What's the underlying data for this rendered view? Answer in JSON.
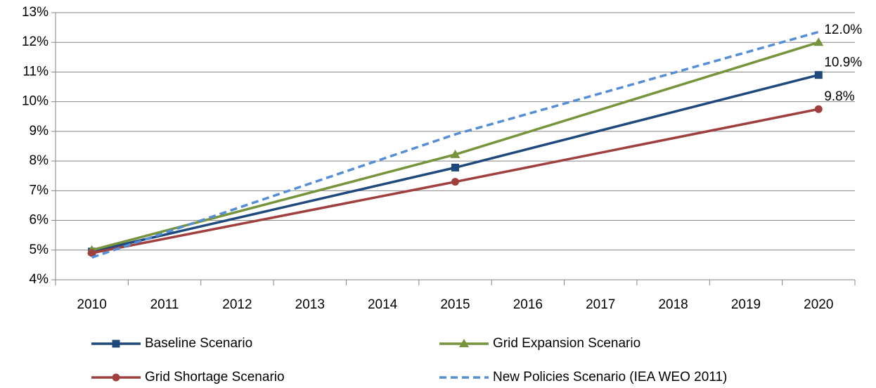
{
  "chart_data": {
    "type": "line",
    "xlim": [
      2009.5,
      2020.5
    ],
    "xticks": [
      2010,
      2011,
      2012,
      2013,
      2014,
      2015,
      2016,
      2017,
      2018,
      2019,
      2020
    ],
    "ylim": [
      4,
      13
    ],
    "yticks": [
      {
        "value": 4,
        "label": "4%"
      },
      {
        "value": 5,
        "label": "5%"
      },
      {
        "value": 6,
        "label": "6%"
      },
      {
        "value": 7,
        "label": "7%"
      },
      {
        "value": 8,
        "label": "8%"
      },
      {
        "value": 9,
        "label": "9%"
      },
      {
        "value": 10,
        "label": "10%"
      },
      {
        "value": 11,
        "label": "11%"
      },
      {
        "value": 12,
        "label": "12%"
      },
      {
        "value": 13,
        "label": "13%"
      }
    ],
    "grid": true,
    "legend": "bottom",
    "series": [
      {
        "name": "Baseline Scenario",
        "color": "#1f497d",
        "marker": "square",
        "x": [
          2010,
          2015,
          2020
        ],
        "values": [
          4.95,
          7.78,
          10.9
        ],
        "value_labels": [
          null,
          null,
          "10.9%"
        ]
      },
      {
        "name": "Grid Expansion Scenario",
        "color": "#77933c",
        "marker": "triangle",
        "x": [
          2010,
          2015,
          2020
        ],
        "values": [
          5.0,
          8.22,
          12.0
        ],
        "value_labels": [
          null,
          null,
          "12.0%"
        ]
      },
      {
        "name": "Grid Shortage Scenario",
        "color": "#a0403e",
        "marker": "circle",
        "x": [
          2010,
          2015,
          2020
        ],
        "values": [
          4.9,
          7.3,
          9.75
        ],
        "value_labels": [
          null,
          null,
          "9.8%"
        ]
      },
      {
        "name": "New Policies Scenario (IEA WEO 2011)",
        "color": "#558ed5",
        "marker": "none",
        "dashed": true,
        "x": [
          2010,
          2015,
          2020
        ],
        "values": [
          4.75,
          8.9,
          12.35
        ]
      }
    ]
  }
}
